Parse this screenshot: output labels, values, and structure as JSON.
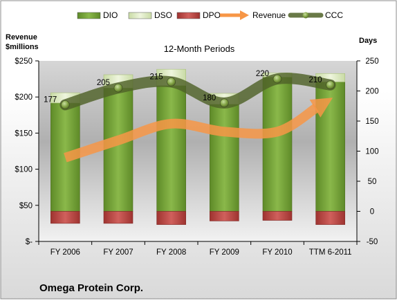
{
  "chart_data": {
    "type": "bar",
    "title": "12-Month Periods",
    "company": "Omega Protein Corp.",
    "left_axis": {
      "title_lines": [
        "Revenue",
        "$millions"
      ],
      "range": [
        0,
        250
      ],
      "ticks": [
        0,
        50,
        100,
        150,
        200,
        250
      ],
      "tick_labels": [
        "$-",
        "$50",
        "$100",
        "$150",
        "$200",
        "$250"
      ]
    },
    "right_axis": {
      "title": "Days",
      "range": [
        -50,
        250
      ],
      "ticks": [
        -50,
        0,
        50,
        100,
        150,
        200,
        250
      ],
      "tick_labels": [
        "-50",
        "0",
        "50",
        "100",
        "150",
        "200",
        "250"
      ]
    },
    "categories": [
      "FY 2006",
      "FY 2007",
      "FY 2008",
      "FY 2009",
      "FY 2010",
      "TTM 6-2011"
    ],
    "series": [
      {
        "name": "DIO",
        "axis": "right",
        "kind": "stacked-bar",
        "color": "#76a33a",
        "values": [
          180,
          205,
          209,
          178,
          223,
          215
        ]
      },
      {
        "name": "DSO",
        "axis": "right",
        "kind": "stacked-bar",
        "color": "#d7e4bd",
        "values": [
          17,
          22,
          27,
          18,
          7,
          14
        ]
      },
      {
        "name": "DPO",
        "axis": "right",
        "kind": "negative-bar",
        "color": "#c0504d",
        "values": [
          -20,
          -20,
          -22,
          -16,
          -15,
          -22
        ]
      },
      {
        "name": "Revenue",
        "axis": "left",
        "kind": "arrow-line",
        "color": "#f79646",
        "values": [
          116,
          140,
          163,
          152,
          152,
          197
        ]
      },
      {
        "name": "CCC",
        "axis": "right",
        "kind": "line-markers",
        "color": "#4f6228",
        "values": [
          177,
          205,
          215,
          180,
          220,
          210
        ]
      }
    ],
    "ccc_labels": [
      "177",
      "205",
      "215",
      "180",
      "220",
      "210"
    ],
    "legend": {
      "placement": "top",
      "items": [
        "DIO",
        "DSO",
        "DPO",
        "Revenue",
        "CCC"
      ]
    },
    "grid": false
  }
}
